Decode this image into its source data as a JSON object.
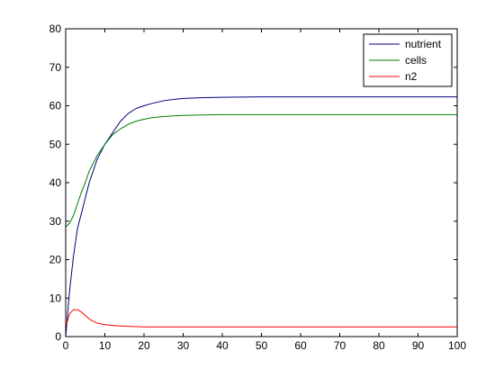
{
  "chart_data": {
    "type": "line",
    "title": "",
    "xlabel": "",
    "ylabel": "",
    "xlim": [
      0,
      100
    ],
    "ylim": [
      0,
      80
    ],
    "xticks": [
      0,
      10,
      20,
      30,
      40,
      50,
      60,
      70,
      80,
      90,
      100
    ],
    "yticks": [
      0,
      10,
      20,
      30,
      40,
      50,
      60,
      70,
      80
    ],
    "grid": false,
    "legend_position": "top-right",
    "series": [
      {
        "name": "nutrient",
        "color": "#00007f",
        "x": [
          0,
          1,
          2,
          3,
          4,
          5,
          6,
          7,
          8,
          9,
          10,
          12,
          14,
          16,
          18,
          20,
          22,
          25,
          28,
          30,
          35,
          40,
          50,
          60,
          70,
          80,
          90,
          100
        ],
        "y": [
          0,
          12,
          21,
          28,
          32,
          36,
          40,
          43,
          46,
          48,
          50,
          53,
          56,
          58,
          59.3,
          60,
          60.6,
          61.3,
          61.7,
          61.9,
          62.1,
          62.2,
          62.3,
          62.3,
          62.3,
          62.3,
          62.3,
          62.3
        ]
      },
      {
        "name": "cells",
        "color": "#007f00",
        "x": [
          0,
          1,
          2,
          3,
          4,
          5,
          6,
          7,
          8,
          9,
          10,
          12,
          14,
          16,
          18,
          20,
          22,
          25,
          28,
          30,
          35,
          40,
          50,
          60,
          70,
          80,
          90,
          100
        ],
        "y": [
          28.5,
          29.5,
          31.5,
          34.5,
          37.5,
          40,
          43,
          45,
          47,
          48.5,
          50,
          52.5,
          54,
          55.2,
          56,
          56.5,
          56.9,
          57.2,
          57.4,
          57.5,
          57.6,
          57.7,
          57.7,
          57.7,
          57.7,
          57.7,
          57.7,
          57.7
        ]
      },
      {
        "name": "n2",
        "color": "#ff0000",
        "x": [
          0,
          1,
          2,
          3,
          4,
          5,
          6,
          7,
          8,
          10,
          12,
          15,
          18,
          20,
          25,
          30,
          40,
          50,
          60,
          70,
          80,
          90,
          100
        ],
        "y": [
          2.5,
          6,
          7,
          7,
          6.4,
          5.5,
          4.6,
          4,
          3.5,
          3.1,
          2.9,
          2.7,
          2.6,
          2.5,
          2.5,
          2.5,
          2.5,
          2.5,
          2.5,
          2.5,
          2.5,
          2.5,
          2.5
        ]
      }
    ]
  }
}
